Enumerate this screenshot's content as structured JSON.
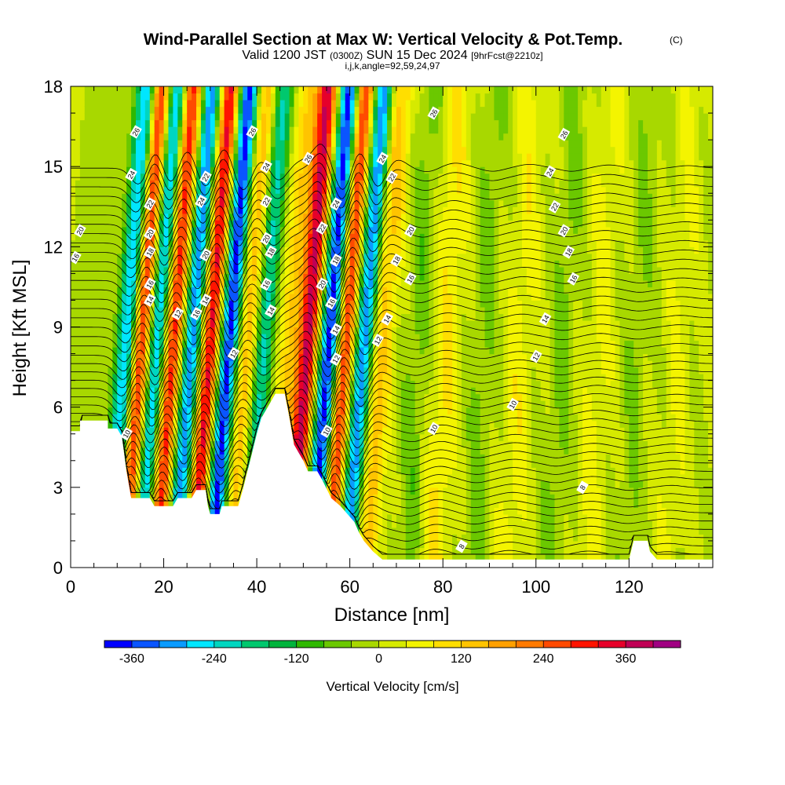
{
  "header": {
    "title": "Wind-Parallel Section at Max W: Vertical Velocity & Pot.Temp.",
    "copyright": "(C)",
    "valid_prefix": "Valid 1200 JST",
    "valid_utc": "(0300Z)",
    "valid_date": "SUN 15 Dec 2024",
    "forecast": "[9hrFcst@2210z]",
    "section_params": "i,j,k,angle=92,59,24,97"
  },
  "chart_data": {
    "type": "heatmap",
    "title": "Wind-Parallel Section at Max W: Vertical Velocity & Pot.Temp.",
    "xlabel": "Distance [nm]",
    "ylabel": "Height [Kft MSL]",
    "xlim": [
      0,
      138
    ],
    "ylim": [
      0,
      18
    ],
    "xticks": [
      0,
      20,
      40,
      60,
      80,
      100,
      120
    ],
    "yticks": [
      0,
      3,
      6,
      9,
      12,
      15,
      18
    ],
    "colorbar": {
      "label": "Vertical Velocity [cm/s]",
      "range": [
        -400,
        440
      ],
      "interval": 40,
      "ticks": [
        -360,
        -240,
        -120,
        0,
        120,
        240,
        360
      ],
      "colors": [
        "#0000ff",
        "#0a55ff",
        "#0a9bff",
        "#00e6ff",
        "#00d6c0",
        "#00c86e",
        "#00b43c",
        "#2fb800",
        "#6bc800",
        "#a8d800",
        "#d6ea00",
        "#f4f400",
        "#ffde00",
        "#ffc400",
        "#ffa000",
        "#ff7a00",
        "#ff4a00",
        "#ff1400",
        "#e6002a",
        "#c00055",
        "#a00082"
      ]
    },
    "terrain": [
      [
        0,
        5.1
      ],
      [
        2,
        5.1
      ],
      [
        2,
        5.5
      ],
      [
        8,
        5.5
      ],
      [
        8,
        5.2
      ],
      [
        10,
        5.2
      ],
      [
        11,
        4.9
      ],
      [
        12,
        3.6
      ],
      [
        13,
        2.6
      ],
      [
        17,
        2.6
      ],
      [
        18,
        2.3
      ],
      [
        22,
        2.3
      ],
      [
        23,
        2.6
      ],
      [
        26,
        2.6
      ],
      [
        27,
        2.9
      ],
      [
        29,
        2.9
      ],
      [
        29.5,
        2.3
      ],
      [
        30,
        2.0
      ],
      [
        32,
        2.0
      ],
      [
        32.5,
        2.3
      ],
      [
        36,
        2.3
      ],
      [
        37,
        2.9
      ],
      [
        38,
        3.6
      ],
      [
        39,
        4.3
      ],
      [
        40,
        5.0
      ],
      [
        41,
        5.6
      ],
      [
        42,
        5.9
      ],
      [
        43,
        6.2
      ],
      [
        44,
        6.5
      ],
      [
        46,
        6.5
      ],
      [
        47,
        5.6
      ],
      [
        48,
        4.6
      ],
      [
        49,
        4.3
      ],
      [
        50,
        4.0
      ],
      [
        51,
        3.6
      ],
      [
        53,
        3.6
      ],
      [
        54,
        3.3
      ],
      [
        56,
        2.6
      ],
      [
        58,
        2.3
      ],
      [
        61,
        1.7
      ],
      [
        62,
        1.3
      ],
      [
        63,
        1.0
      ],
      [
        65,
        0.6
      ],
      [
        67,
        0.3
      ],
      [
        120,
        0.3
      ],
      [
        121,
        1.0
      ],
      [
        124,
        1.0
      ],
      [
        124.5,
        0.6
      ],
      [
        126,
        0.3
      ],
      [
        138,
        0.3
      ]
    ],
    "w_bands": [
      {
        "x": 11,
        "w": -300,
        "slope": 0.45,
        "width": 2.2
      },
      {
        "x": 14,
        "w": 320,
        "slope": 0.45,
        "width": 2.0
      },
      {
        "x": 17.5,
        "w": -280,
        "slope": 0.45,
        "width": 1.9
      },
      {
        "x": 21,
        "w": 300,
        "slope": 0.45,
        "width": 2.0
      },
      {
        "x": 25,
        "w": -320,
        "slope": 0.45,
        "width": 2.0
      },
      {
        "x": 29,
        "w": 340,
        "slope": 0.45,
        "width": 2.0
      },
      {
        "x": 33,
        "w": -380,
        "slope": 0.45,
        "width": 2.1
      },
      {
        "x": 37,
        "w": 160,
        "slope": 0.45,
        "width": 2.2
      },
      {
        "x": 40.5,
        "w": -220,
        "slope": 0.45,
        "width": 2.2
      },
      {
        "x": 46,
        "w": 120,
        "slope": 0.45,
        "width": 2.8
      },
      {
        "x": 50,
        "w": 360,
        "slope": 0.45,
        "width": 2.1
      },
      {
        "x": 54.5,
        "w": -380,
        "slope": 0.45,
        "width": 2.1
      },
      {
        "x": 58,
        "w": 300,
        "slope": 0.45,
        "width": 1.9
      },
      {
        "x": 62,
        "w": -320,
        "slope": 0.45,
        "width": 2.0
      },
      {
        "x": 66,
        "w": 140,
        "slope": 0.45,
        "width": 2.4
      },
      {
        "x": 74,
        "w": -60,
        "slope": 0.3,
        "width": 2.5
      },
      {
        "x": 80,
        "w": 80,
        "slope": 0.3,
        "width": 3.0
      },
      {
        "x": 88,
        "w": -50,
        "slope": 0.3,
        "width": 2.5
      },
      {
        "x": 96,
        "w": 60,
        "slope": 0.3,
        "width": 3.0
      },
      {
        "x": 105,
        "w": -50,
        "slope": 0.3,
        "width": 2.5
      },
      {
        "x": 113,
        "w": 50,
        "slope": 0.3,
        "width": 3.0
      },
      {
        "x": 121,
        "w": -40,
        "slope": 0.3,
        "width": 2.5
      },
      {
        "x": 130,
        "w": 40,
        "slope": 0.3,
        "width": 3.0
      }
    ],
    "theta_contours": [
      {
        "level": 8,
        "labels": [
          [
            84,
            0.8
          ],
          [
            110,
            3.0
          ]
        ]
      },
      {
        "level": 10,
        "labels": [
          [
            12,
            5.0
          ],
          [
            55,
            5.1
          ],
          [
            78,
            5.2
          ],
          [
            95,
            6.1
          ]
        ]
      },
      {
        "level": 12,
        "labels": [
          [
            23,
            9.5
          ],
          [
            35,
            8.0
          ],
          [
            57,
            7.8
          ],
          [
            66,
            8.5
          ],
          [
            100,
            7.9
          ]
        ]
      },
      {
        "level": 14,
        "labels": [
          [
            17,
            10.0
          ],
          [
            29,
            10.0
          ],
          [
            43,
            9.6
          ],
          [
            57,
            8.9
          ],
          [
            68,
            9.3
          ],
          [
            102,
            9.3
          ]
        ]
      },
      {
        "level": 16,
        "labels": [
          [
            1,
            11.6
          ],
          [
            17,
            10.6
          ],
          [
            27,
            9.5
          ],
          [
            42,
            10.6
          ],
          [
            56,
            9.9
          ],
          [
            73,
            10.8
          ],
          [
            108,
            10.8
          ]
        ]
      },
      {
        "level": 18,
        "labels": [
          [
            17,
            11.8
          ],
          [
            43,
            11.8
          ],
          [
            57,
            11.5
          ],
          [
            70,
            11.5
          ],
          [
            107,
            11.8
          ]
        ]
      },
      {
        "level": 20,
        "labels": [
          [
            2,
            12.6
          ],
          [
            17,
            12.5
          ],
          [
            29,
            11.7
          ],
          [
            42,
            12.3
          ],
          [
            54,
            10.6
          ],
          [
            73,
            12.6
          ],
          [
            106,
            12.6
          ]
        ]
      },
      {
        "level": 22,
        "labels": [
          [
            17,
            13.6
          ],
          [
            29,
            14.6
          ],
          [
            42,
            13.7
          ],
          [
            54,
            12.7
          ],
          [
            69,
            14.6
          ],
          [
            104,
            13.5
          ]
        ]
      },
      {
        "level": 24,
        "labels": [
          [
            13,
            14.7
          ],
          [
            28,
            13.7
          ],
          [
            42,
            15.0
          ],
          [
            57,
            13.6
          ],
          [
            67,
            15.3
          ],
          [
            103,
            14.8
          ]
        ]
      },
      {
        "level": 26,
        "labels": [
          [
            14,
            16.3
          ],
          [
            39,
            16.3
          ],
          [
            51,
            15.3
          ],
          [
            78,
            17.0
          ],
          [
            106,
            16.2
          ]
        ]
      },
      {
        "level": 28,
        "labels": []
      }
    ]
  }
}
